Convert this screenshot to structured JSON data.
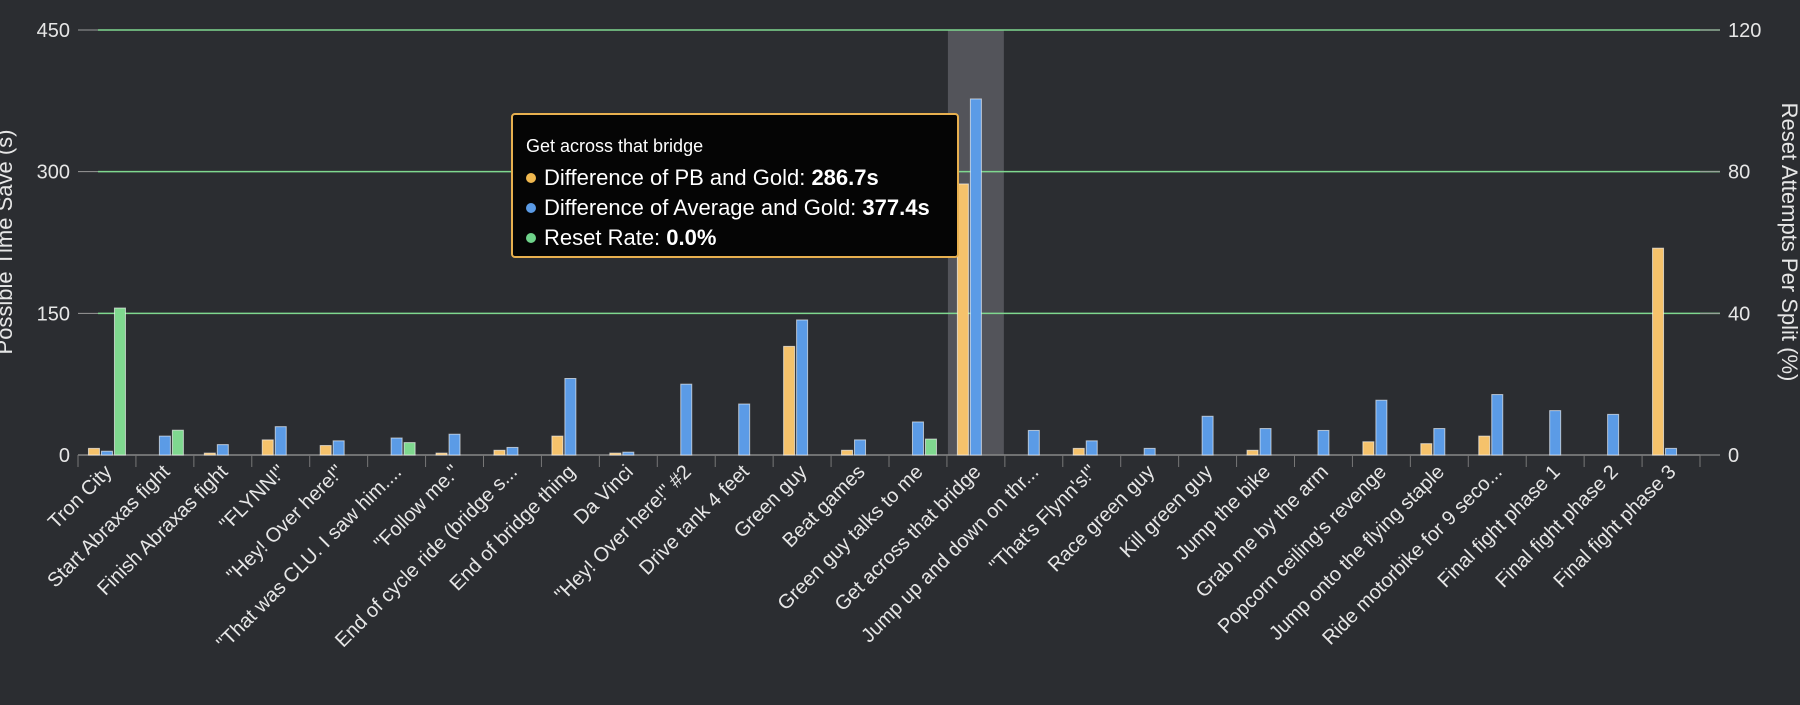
{
  "chart_data": {
    "type": "bar",
    "y_left": {
      "label": "Possible Time Save (s)",
      "ticks": [
        0,
        150,
        300,
        450
      ],
      "range": [
        0,
        450
      ]
    },
    "y_right": {
      "label": "Reset Attempts Per Split (%)",
      "ticks": [
        0,
        40,
        80,
        120
      ],
      "range": [
        0,
        120
      ]
    },
    "grid": true,
    "categories": [
      "Tron City",
      "Start Abraxas fight",
      "Finish Abraxas fight",
      "\"FLYNN!\"",
      "\"Hey! Over here!\"",
      "\"That was CLU. I saw him....",
      "\"Follow me.\"",
      "End of cycle ride (bridge s...",
      "End of bridge thing",
      "Da Vinci",
      "\"Hey! Over here!\" #2",
      "Drive tank 4 feet",
      "Green guy",
      "Beat games",
      "Green guy talks to me",
      "Get across that bridge",
      "Jump up and down on thr...",
      "\"That's Flynn's!\"",
      "Race green guy",
      "Kill green guy",
      "Jump the bike",
      "Grab me by the arm",
      "Popcorn ceiling's revenge",
      "Jump onto the flying staple",
      "Ride motorbike for 9 seco...",
      "Final fight phase 1",
      "Final fight phase 2",
      "Final fight phase 3"
    ],
    "series": [
      {
        "name": "Difference of PB and Gold",
        "axis": "left",
        "color": "#f5c26b",
        "values": [
          7,
          0,
          2,
          16,
          10,
          0,
          2,
          5,
          20,
          2,
          0,
          0,
          115,
          5,
          0,
          287,
          0,
          7,
          0,
          0,
          5,
          0,
          14,
          12,
          20,
          0,
          0,
          219
        ]
      },
      {
        "name": "Difference of Average and Gold",
        "axis": "left",
        "color": "#5b9be6",
        "values": [
          4,
          20,
          11,
          30,
          15,
          18,
          22,
          8,
          81,
          3,
          75,
          54,
          143,
          16,
          35,
          377,
          26,
          15,
          7,
          41,
          28,
          26,
          58,
          28,
          64,
          47,
          43,
          7
        ]
      },
      {
        "name": "Reset Rate",
        "axis": "right",
        "color": "#7fd88f",
        "values": [
          41.5,
          7,
          0,
          0,
          0,
          3.5,
          0,
          0,
          0,
          0,
          0,
          0,
          0,
          0,
          4.5,
          0,
          0,
          0,
          0,
          0,
          0,
          0,
          0,
          0,
          0,
          0,
          0,
          0
        ]
      }
    ],
    "highlight_category": "Get across that bridge"
  },
  "tooltip": {
    "title": "Get across that bridge",
    "rows": [
      {
        "label": "Difference of PB and Gold:",
        "value": "286.7s",
        "color": "#f0b84f"
      },
      {
        "label": "Difference of Average and Gold:",
        "value": "377.4s",
        "color": "#5b9be6"
      },
      {
        "label": "Reset Rate:",
        "value": "0.0%",
        "color": "#6fd38a"
      }
    ]
  },
  "colors": {
    "background": "#2b2d31",
    "grid": "#7fd88f",
    "axis_text": "#e6e6e6"
  }
}
